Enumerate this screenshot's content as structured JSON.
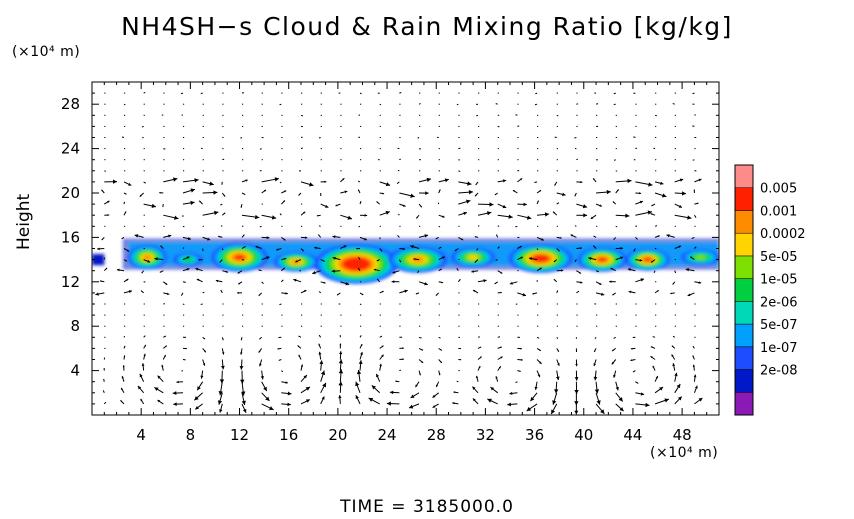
{
  "title": "NH4SH−s Cloud & Rain Mixing Ratio [kg/kg]",
  "time_label": "TIME  =  3185000.0",
  "colors": {
    "colorbar": [
      "#8b1ab4",
      "#0018c8",
      "#1e4cff",
      "#00a0ff",
      "#00d8b8",
      "#00d040",
      "#7ee000",
      "#ffd400",
      "#ff8c00",
      "#ff2000",
      "#ff8a8a"
    ],
    "axis": "#000000",
    "vectors": "#000000"
  },
  "chart_data": {
    "type": "heatmap",
    "title": "NH4SH−s Cloud & Rain Mixing Ratio [kg/kg]",
    "xlabel": "",
    "x_unit": "(×10⁴ m)",
    "ylabel": "Height",
    "y_unit": "(×10⁴ m)",
    "xlim": [
      0,
      51
    ],
    "ylim": [
      0,
      30
    ],
    "x_ticks": [
      4,
      8,
      12,
      16,
      20,
      24,
      28,
      32,
      36,
      40,
      44,
      48
    ],
    "y_ticks": [
      4,
      8,
      12,
      16,
      20,
      24,
      28
    ],
    "colorbar_labels": [
      "0.005",
      "0.001",
      "0.0002",
      "5e-05",
      "1e-05",
      "2e-06",
      "5e-07",
      "1e-07",
      "2e-08"
    ],
    "cloud_layer": {
      "base": 12.5,
      "top": 16.2
    },
    "cloud_blobs": [
      {
        "x": 4.5,
        "y": 14.2,
        "rx": 1.6,
        "ry": 1.1,
        "level": 6
      },
      {
        "x": 7.8,
        "y": 14.0,
        "rx": 1.2,
        "ry": 0.6,
        "level": 3
      },
      {
        "x": 12.0,
        "y": 14.2,
        "rx": 2.3,
        "ry": 1.3,
        "level": 7
      },
      {
        "x": 16.6,
        "y": 13.8,
        "rx": 1.8,
        "ry": 0.9,
        "level": 6
      },
      {
        "x": 21.5,
        "y": 13.6,
        "rx": 3.4,
        "ry": 1.8,
        "level": 9
      },
      {
        "x": 26.5,
        "y": 14.0,
        "rx": 2.4,
        "ry": 1.2,
        "level": 6
      },
      {
        "x": 31.0,
        "y": 14.2,
        "rx": 1.8,
        "ry": 0.9,
        "level": 5
      },
      {
        "x": 36.5,
        "y": 14.1,
        "rx": 2.6,
        "ry": 1.3,
        "level": 8
      },
      {
        "x": 41.5,
        "y": 14.0,
        "rx": 2.0,
        "ry": 1.1,
        "level": 7
      },
      {
        "x": 45.2,
        "y": 14.0,
        "rx": 1.8,
        "ry": 1.0,
        "level": 7
      },
      {
        "x": 49.5,
        "y": 14.2,
        "rx": 1.6,
        "ry": 0.7,
        "level": 4
      }
    ],
    "circulations": [
      {
        "x": 7.5,
        "y": 4.3,
        "direction": "cw"
      },
      {
        "x": 15.5,
        "y": 4.3,
        "direction": "ccw"
      },
      {
        "x": 25.0,
        "y": 3.7,
        "direction": "cw"
      },
      {
        "x": 34.5,
        "y": 3.3,
        "direction": "cw"
      },
      {
        "x": 44.5,
        "y": 3.5,
        "direction": "ccw"
      }
    ],
    "grid": false,
    "legend": "right colorbar"
  }
}
